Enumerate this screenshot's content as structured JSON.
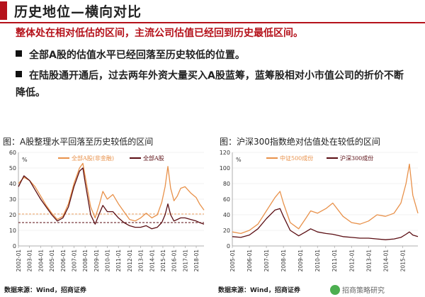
{
  "header": {
    "title": "历史地位—横向对比",
    "subtitle": "整体处在相对低估的区间，主流公司估值已经回到历史最低区间。"
  },
  "bullets": [
    {
      "text": "全部A股的估值水平已经回落至历史较低的位置。"
    },
    {
      "text": "在陆股通开通后，过去两年外资大量买入A股蓝筹，蓝筹股相对小市值公司的折价不断降低。"
    }
  ],
  "sources": {
    "left": "数据来源：Wind，招商证券",
    "right": "数据来源：Wind，招商证券"
  },
  "watermark": "招商策略研究",
  "colors": {
    "accent": "#b5121b",
    "orange": "#e8914a",
    "darkred": "#5a0d12",
    "grid": "#e6e6e6"
  },
  "chart_data": [
    {
      "type": "line",
      "title": "图：A股整理水平回落至历史较低的区间",
      "ylabel": "%",
      "ylim": [
        0,
        60
      ],
      "yticks": [
        "0",
        "10",
        "20",
        "30",
        "40",
        "50",
        "60"
      ],
      "xticks": [
        "2002-01",
        "2003-01",
        "2004-01",
        "2005-01",
        "2006-01",
        "2007-01",
        "2008-01",
        "2009-01",
        "2010-01",
        "2011-01",
        "2012-01",
        "2013-01",
        "2014-01",
        "2015-01",
        "2016-01",
        "2017-01",
        "2018-01"
      ],
      "x_start": 2002.0,
      "x_end": 2018.7,
      "reference_lines": [
        {
          "value": 20.5,
          "color": "#e8914a"
        },
        {
          "value": 15.0,
          "color": "#5a0d12"
        }
      ],
      "legend_position": "top-center",
      "series": [
        {
          "name": "全部A股(非金融)",
          "color": "#e8914a",
          "x": [
            2002.0,
            2002.5,
            2003.0,
            2003.5,
            2004.0,
            2004.5,
            2005.0,
            2005.5,
            2006.0,
            2006.5,
            2007.0,
            2007.5,
            2007.8,
            2008.0,
            2008.5,
            2008.9,
            2009.3,
            2009.6,
            2010.0,
            2010.5,
            2011.0,
            2011.5,
            2012.0,
            2012.5,
            2013.0,
            2013.5,
            2014.0,
            2014.5,
            2014.9,
            2015.2,
            2015.45,
            2015.7,
            2016.0,
            2016.3,
            2016.6,
            2017.0,
            2017.5,
            2018.0,
            2018.3,
            2018.7
          ],
          "y": [
            40,
            44,
            42,
            38,
            32,
            26,
            21,
            17,
            19,
            27,
            40,
            50,
            53,
            45,
            25,
            18,
            27,
            35,
            30,
            33,
            27,
            22,
            17,
            16,
            18,
            21,
            18,
            20,
            28,
            38,
            51,
            37,
            29,
            32,
            37,
            38,
            34,
            31,
            27,
            23
          ]
        },
        {
          "name": "全部A股",
          "color": "#5a0d12",
          "x": [
            2002.0,
            2002.5,
            2003.0,
            2003.5,
            2004.0,
            2004.5,
            2005.0,
            2005.5,
            2006.0,
            2006.5,
            2007.0,
            2007.5,
            2007.8,
            2008.0,
            2008.5,
            2008.9,
            2009.3,
            2009.6,
            2010.0,
            2010.5,
            2011.0,
            2011.5,
            2012.0,
            2012.5,
            2013.0,
            2013.5,
            2014.0,
            2014.5,
            2014.9,
            2015.2,
            2015.45,
            2015.7,
            2016.0,
            2016.3,
            2016.6,
            2017.0,
            2017.5,
            2018.0,
            2018.3,
            2018.7
          ],
          "y": [
            38,
            45,
            42,
            36,
            30,
            25,
            20,
            16,
            18,
            25,
            38,
            48,
            50,
            41,
            20,
            14,
            21,
            26,
            22,
            22,
            18,
            15,
            13,
            12,
            12,
            13,
            11,
            12,
            15,
            20,
            27,
            20,
            16,
            17,
            18,
            18,
            17,
            16,
            15,
            14
          ]
        }
      ]
    },
    {
      "type": "line",
      "title": "图：沪深300指数绝对估值处在较低的区间",
      "ylabel": "%",
      "ylim": [
        0,
        120
      ],
      "yticks": [
        "0",
        "20",
        "40",
        "60",
        "80",
        "100",
        "120"
      ],
      "xticks": [
        "2005-01",
        "2006-01",
        "2007-01",
        "2008-01",
        "2009-01",
        "2010-01",
        "2011-01",
        "2012-01",
        "2013-01",
        "2014-01",
        "2015-01"
      ],
      "x_start": 2005.0,
      "x_end": 2015.9,
      "legend_position": "top-center",
      "series": [
        {
          "name": "中证500成份",
          "color": "#e8914a",
          "x": [
            2005.0,
            2005.5,
            2006.0,
            2006.5,
            2007.0,
            2007.5,
            2007.8,
            2008.0,
            2008.4,
            2008.9,
            2009.3,
            2009.6,
            2010.0,
            2010.5,
            2010.9,
            2011.5,
            2012.0,
            2012.5,
            2013.0,
            2013.5,
            2014.0,
            2014.5,
            2014.9,
            2015.2,
            2015.4,
            2015.6,
            2015.9
          ],
          "y": [
            18,
            16,
            20,
            28,
            45,
            62,
            70,
            55,
            30,
            22,
            35,
            45,
            42,
            48,
            55,
            38,
            30,
            28,
            32,
            40,
            38,
            42,
            55,
            80,
            105,
            65,
            42
          ]
        },
        {
          "name": "沪深300成份",
          "color": "#5a0d12",
          "x": [
            2005.0,
            2005.5,
            2006.0,
            2006.5,
            2007.0,
            2007.5,
            2007.8,
            2008.0,
            2008.4,
            2008.9,
            2009.3,
            2009.6,
            2010.0,
            2010.5,
            2010.9,
            2011.5,
            2012.0,
            2012.5,
            2013.0,
            2013.5,
            2014.0,
            2014.5,
            2014.9,
            2015.2,
            2015.4,
            2015.6,
            2015.9
          ],
          "y": [
            12,
            11,
            14,
            22,
            35,
            46,
            48,
            38,
            20,
            13,
            18,
            22,
            18,
            16,
            15,
            12,
            11,
            10,
            10,
            9,
            8,
            9,
            11,
            15,
            18,
            14,
            12
          ]
        }
      ]
    }
  ]
}
